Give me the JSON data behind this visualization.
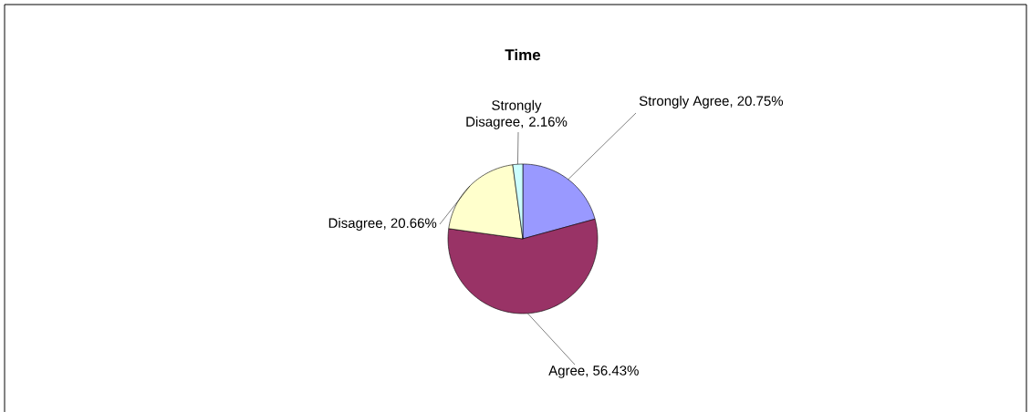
{
  "chart_data": {
    "type": "pie",
    "title": "Time",
    "categories": [
      "Strongly Agree",
      "Agree",
      "Disagree",
      "Strongly Disagree"
    ],
    "values": [
      20.75,
      56.43,
      20.66,
      2.16
    ],
    "value_labels": [
      ", 20.75%",
      ", 56.43%",
      ", 20.66%",
      ", 2.16%"
    ],
    "colors": [
      "#9999ff",
      "#993366",
      "#ffffcc",
      "#ccffff"
    ]
  }
}
